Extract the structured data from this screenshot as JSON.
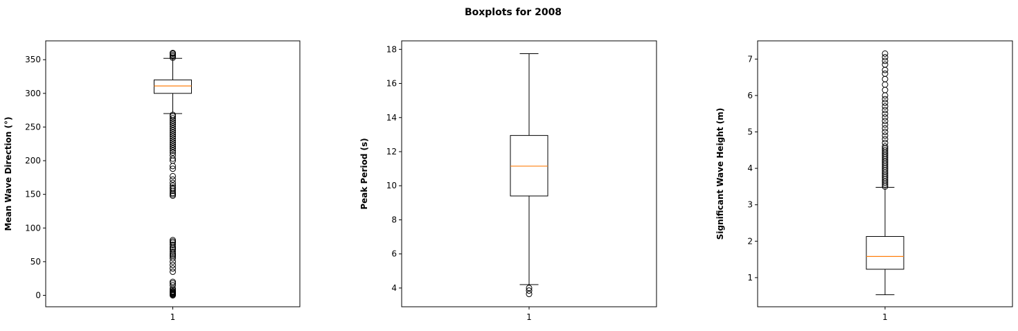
{
  "figure": {
    "title": "Boxplots for 2008"
  },
  "chart_data": [
    {
      "type": "boxplot",
      "ylabel": "Mean Wave Direction (°)",
      "categories": [
        "1"
      ],
      "ylim": [
        -17,
        378
      ],
      "yticks": [
        0,
        50,
        100,
        150,
        200,
        250,
        300,
        350
      ],
      "box": {
        "whisker_low": 270,
        "q1": 300,
        "median": 311,
        "q3": 320,
        "whisker_high": 352
      },
      "outliers": [
        0,
        1,
        2,
        3,
        4,
        5,
        6,
        8,
        10,
        15,
        18,
        20,
        35,
        40,
        45,
        50,
        55,
        58,
        60,
        62,
        65,
        68,
        70,
        72,
        75,
        78,
        80,
        82,
        148,
        150,
        152,
        155,
        158,
        160,
        163,
        167,
        172,
        177,
        188,
        192,
        200,
        203,
        208,
        212,
        215,
        218,
        221,
        224,
        227,
        230,
        233,
        236,
        239,
        242,
        245,
        248,
        251,
        254,
        257,
        260,
        263,
        266,
        268,
        353,
        355,
        357,
        359,
        360
      ]
    },
    {
      "type": "boxplot",
      "ylabel": "Peak Period (s)",
      "categories": [
        "1"
      ],
      "ylim": [
        2.9,
        18.5
      ],
      "yticks": [
        4,
        6,
        8,
        10,
        12,
        14,
        16,
        18
      ],
      "box": {
        "whisker_low": 4.2,
        "q1": 9.4,
        "median": 11.15,
        "q3": 12.95,
        "whisker_high": 17.75
      },
      "outliers": [
        3.65,
        3.85,
        4.0
      ]
    },
    {
      "type": "boxplot",
      "ylabel": "Significant Wave Height (m)",
      "categories": [
        "1"
      ],
      "ylim": [
        0.2,
        7.5
      ],
      "yticks": [
        1,
        2,
        3,
        4,
        5,
        6,
        7
      ],
      "box": {
        "whisker_low": 0.53,
        "q1": 1.23,
        "median": 1.58,
        "q3": 2.13,
        "whisker_high": 3.48
      },
      "outliers": [
        3.5,
        3.55,
        3.6,
        3.65,
        3.7,
        3.75,
        3.8,
        3.85,
        3.9,
        3.95,
        4.0,
        4.05,
        4.1,
        4.15,
        4.2,
        4.25,
        4.3,
        4.35,
        4.4,
        4.45,
        4.5,
        4.55,
        4.6,
        4.7,
        4.8,
        4.9,
        5.0,
        5.1,
        5.2,
        5.3,
        5.4,
        5.5,
        5.6,
        5.7,
        5.8,
        5.9,
        6.0,
        6.15,
        6.3,
        6.45,
        6.6,
        6.7,
        6.85,
        6.95,
        7.05,
        7.15
      ]
    }
  ],
  "colors": {
    "median": "#ff7f0e",
    "box": "#000000",
    "frame": "#000000"
  }
}
